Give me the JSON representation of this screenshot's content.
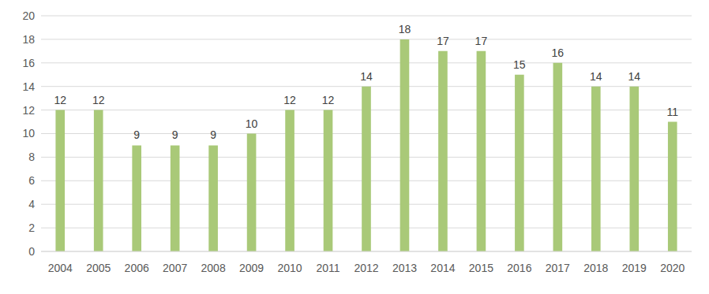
{
  "chart_data": {
    "type": "bar",
    "categories": [
      "2004",
      "2005",
      "2006",
      "2007",
      "2008",
      "2009",
      "2010",
      "2011",
      "2012",
      "2013",
      "2014",
      "2015",
      "2016",
      "2017",
      "2018",
      "2019",
      "2020"
    ],
    "values": [
      12,
      12,
      9,
      9,
      9,
      10,
      12,
      12,
      14,
      18,
      17,
      17,
      15,
      16,
      14,
      14,
      11
    ],
    "color": "#a9c978",
    "ylim": [
      0,
      20
    ],
    "yticks": [
      0,
      2,
      4,
      6,
      8,
      10,
      12,
      14,
      16,
      18,
      20
    ],
    "grid": true,
    "data_labels": true
  }
}
